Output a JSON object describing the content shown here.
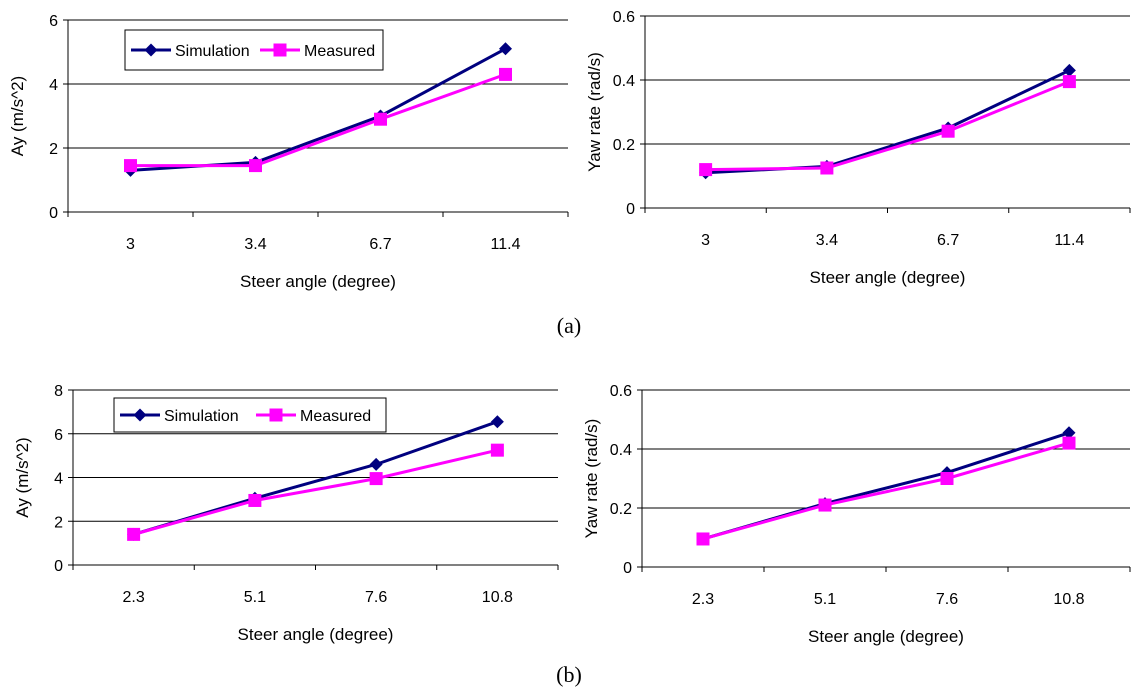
{
  "colors": {
    "simulation": "#00007f",
    "measured": "#ff00ff",
    "grid": "#000000"
  },
  "captions": {
    "a": "(a)",
    "b": "(b)"
  },
  "chart_data": [
    {
      "type": "line",
      "categories": [
        "3",
        "3.4",
        "6.7",
        "11.4"
      ],
      "xlabel": "Steer angle (degree)",
      "ylabel": "Ay  (m/s^2)",
      "ylim": [
        0,
        6
      ],
      "yticks": [
        0,
        2,
        4,
        6
      ],
      "grid": true,
      "legend": "top-left",
      "series": [
        {
          "name": "Simulation",
          "values": [
            1.3,
            1.55,
            3.0,
            5.1
          ]
        },
        {
          "name": "Measured",
          "values": [
            1.45,
            1.45,
            2.9,
            4.3
          ]
        }
      ]
    },
    {
      "type": "line",
      "categories": [
        "3",
        "3.4",
        "6.7",
        "11.4"
      ],
      "xlabel": "Steer angle (degree)",
      "ylabel": "Yaw rate  (rad/s)",
      "ylim": [
        0,
        0.6
      ],
      "yticks": [
        0,
        0.2,
        0.4,
        0.6
      ],
      "grid": true,
      "legend": "none",
      "series": [
        {
          "name": "Simulation",
          "values": [
            0.11,
            0.13,
            0.25,
            0.43
          ]
        },
        {
          "name": "Measured",
          "values": [
            0.12,
            0.125,
            0.24,
            0.395
          ]
        }
      ]
    },
    {
      "type": "line",
      "categories": [
        "2.3",
        "5.1",
        "7.6",
        "10.8"
      ],
      "xlabel": "Steer angle (degree)",
      "ylabel": "Ay  (m/s^2)",
      "ylim": [
        0,
        8
      ],
      "yticks": [
        0,
        2,
        4,
        6,
        8
      ],
      "grid": true,
      "legend": "top-left",
      "series": [
        {
          "name": "Simulation",
          "values": [
            1.4,
            3.05,
            4.6,
            6.55
          ]
        },
        {
          "name": "Measured",
          "values": [
            1.4,
            2.95,
            3.95,
            5.25
          ]
        }
      ]
    },
    {
      "type": "line",
      "categories": [
        "2.3",
        "5.1",
        "7.6",
        "10.8"
      ],
      "xlabel": "Steer angle (degree)",
      "ylabel": "Yaw rate  (rad/s)",
      "ylim": [
        0,
        0.6
      ],
      "yticks": [
        0,
        0.2,
        0.4,
        0.6
      ],
      "grid": true,
      "legend": "none",
      "series": [
        {
          "name": "Simulation",
          "values": [
            0.095,
            0.215,
            0.32,
            0.455
          ]
        },
        {
          "name": "Measured",
          "values": [
            0.095,
            0.21,
            0.3,
            0.42
          ]
        }
      ]
    }
  ]
}
